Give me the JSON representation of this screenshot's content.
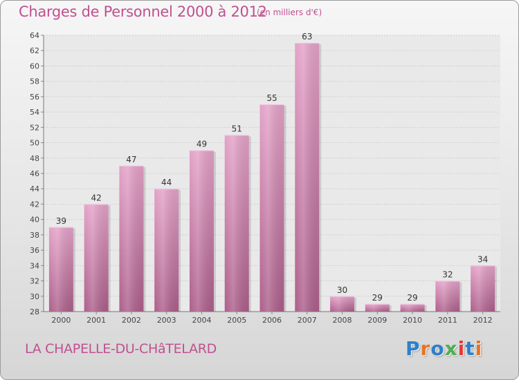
{
  "header": {
    "title": "Charges de Personnel 2000 à 2012",
    "unit": "(en milliers d'€)"
  },
  "footer": {
    "commune": "LA CHAPELLE-DU-CHâTELARD",
    "logo_text": "Proxiti",
    "logo_colors": [
      "#2f80c8",
      "#e8741f",
      "#2f80c8",
      "#4caf50",
      "#e53935",
      "#2f80c8",
      "#e8741f"
    ]
  },
  "chart_data": {
    "type": "bar",
    "title": "Charges de Personnel 2000 à 2012",
    "subtitle": "(en milliers d'€)",
    "categories": [
      "2000",
      "2001",
      "2002",
      "2003",
      "2004",
      "2005",
      "2006",
      "2007",
      "2008",
      "2009",
      "2010",
      "2011",
      "2012"
    ],
    "values": [
      39,
      42,
      47,
      44,
      49,
      51,
      55,
      63,
      30,
      29,
      29,
      32,
      34
    ],
    "ylim": [
      28,
      64
    ],
    "yticks": [
      28,
      30,
      32,
      34,
      36,
      38,
      40,
      42,
      44,
      46,
      48,
      50,
      52,
      54,
      56,
      58,
      60,
      62,
      64
    ],
    "grid": true,
    "xlabel": "",
    "ylabel": "",
    "bar_color": "#d78ab6",
    "text_color": "#c0508f"
  }
}
